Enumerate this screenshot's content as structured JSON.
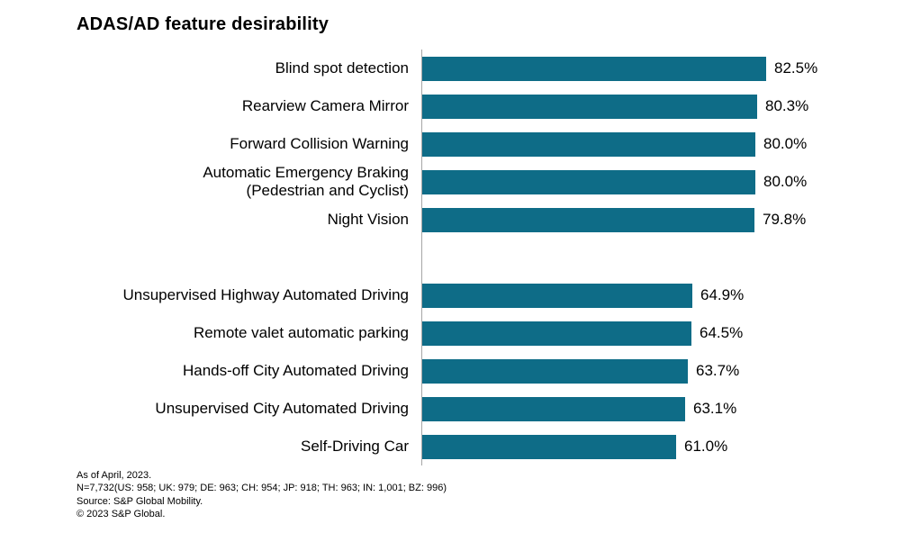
{
  "chart_data": {
    "type": "bar",
    "orientation": "horizontal",
    "title": "ADAS/AD feature desirability",
    "xlabel": "",
    "ylabel": "",
    "xlim": [
      0,
      100
    ],
    "value_suffix": "%",
    "bar_color": "#0e6c87",
    "axis_line_color": "#a6a6a6",
    "legend": "none",
    "grid": false,
    "groups": [
      {
        "items": [
          {
            "label": "Blind spot detection",
            "value": 82.5,
            "display": "82.5%"
          },
          {
            "label": "Rearview Camera Mirror",
            "value": 80.3,
            "display": "80.3%"
          },
          {
            "label": "Forward Collision Warning",
            "value": 80.0,
            "display": "80.0%"
          },
          {
            "label": "Automatic Emergency Braking\n(Pedestrian and Cyclist)",
            "value": 80.0,
            "display": "80.0%"
          },
          {
            "label": "Night Vision",
            "value": 79.8,
            "display": "79.8%"
          }
        ]
      },
      {
        "items": [
          {
            "label": "Unsupervised Highway Automated Driving",
            "value": 64.9,
            "display": "64.9%"
          },
          {
            "label": "Remote valet automatic parking",
            "value": 64.5,
            "display": "64.5%"
          },
          {
            "label": "Hands-off City Automated Driving",
            "value": 63.7,
            "display": "63.7%"
          },
          {
            "label": "Unsupervised City Automated Driving",
            "value": 63.1,
            "display": "63.1%"
          },
          {
            "label": "Self-Driving Car",
            "value": 61.0,
            "display": "61.0%"
          }
        ]
      }
    ]
  },
  "footnotes": [
    "As of April, 2023.",
    "N=7,732(US: 958; UK: 979; DE: 963; CH: 954; JP: 918; TH: 963; IN: 1,001; BZ: 996)",
    "Source: S&P Global Mobility.",
    "© 2023 S&P Global."
  ]
}
